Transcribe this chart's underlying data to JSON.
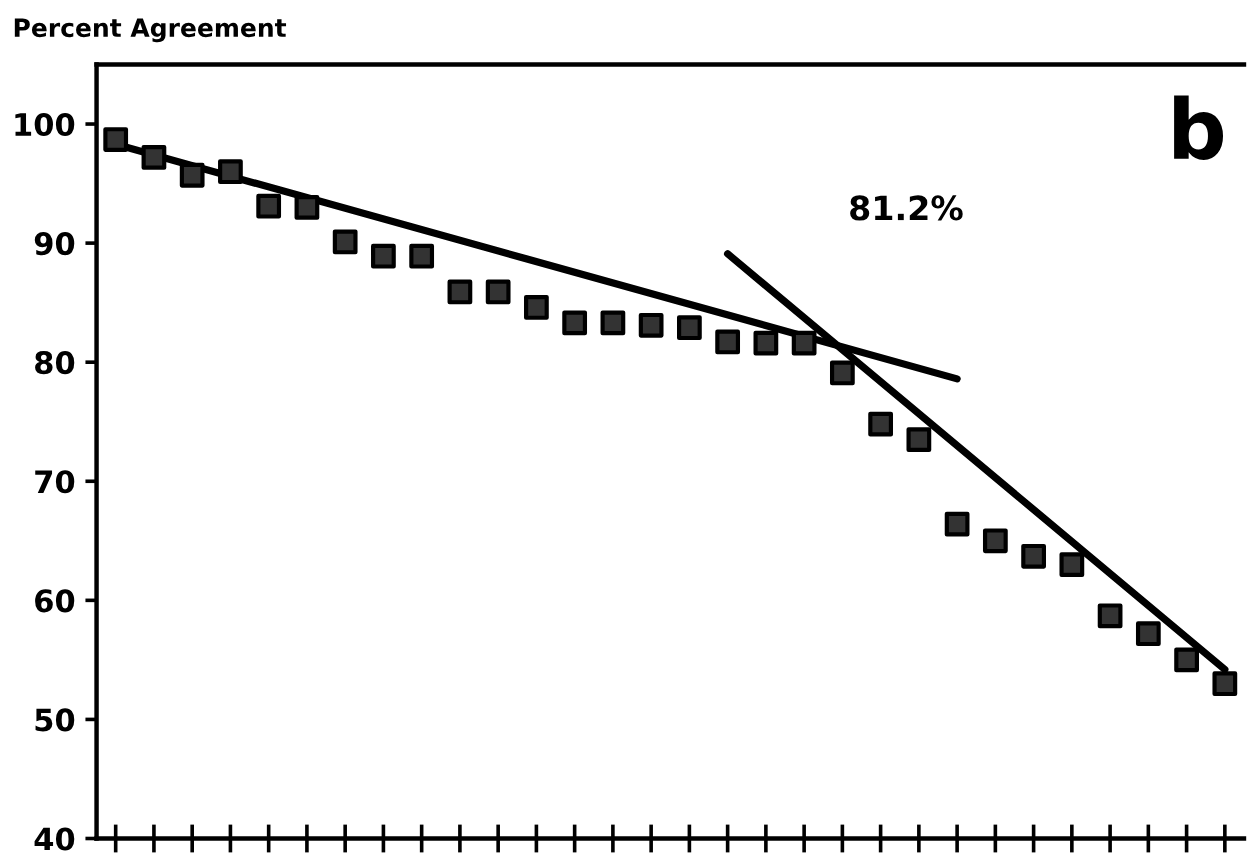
{
  "chart_data": {
    "type": "scatter",
    "ylabel": "Percent Agreement",
    "marker": "square",
    "categories": [
      null,
      null,
      null,
      null,
      null,
      null,
      null,
      null,
      null,
      null,
      null,
      null,
      null,
      null,
      null,
      null,
      null,
      null,
      null,
      null,
      null,
      null,
      null,
      null,
      null,
      null,
      null,
      null,
      null,
      null
    ],
    "series": [
      {
        "color": "#000000",
        "values": [
          98.7,
          97.2,
          95.7,
          96.0,
          93.1,
          93.0,
          90.1,
          88.9,
          88.9,
          85.9,
          85.9,
          84.6,
          83.3,
          83.3,
          83.1,
          82.9,
          81.7,
          81.6,
          81.6,
          79.1,
          74.8,
          73.5,
          66.4,
          65.0,
          63.7,
          63.0,
          58.7,
          57.2,
          55.0,
          53.0
        ]
      },
      {
        "type": "line",
        "color": "#000000",
        "marker": "none",
        "values": [
          98.3,
          null,
          null,
          null,
          null,
          null,
          null,
          null,
          null,
          null,
          null,
          null,
          null,
          null,
          null,
          null,
          null,
          null,
          null,
          null,
          null,
          null,
          78.6,
          null,
          null,
          null,
          null,
          null,
          null,
          null
        ]
      },
      {
        "type": "line",
        "color": "#000000",
        "marker": "none",
        "values": [
          null,
          null,
          null,
          null,
          null,
          null,
          null,
          null,
          null,
          null,
          null,
          null,
          null,
          null,
          null,
          null,
          89.1,
          null,
          null,
          null,
          null,
          null,
          null,
          null,
          null,
          null,
          null,
          null,
          null,
          54.2
        ]
      }
    ],
    "ylim": [
      40,
      105
    ],
    "yticks": [
      40,
      50,
      60,
      70,
      80,
      90,
      100
    ],
    "annotations": [
      "81.2%",
      "b"
    ]
  }
}
